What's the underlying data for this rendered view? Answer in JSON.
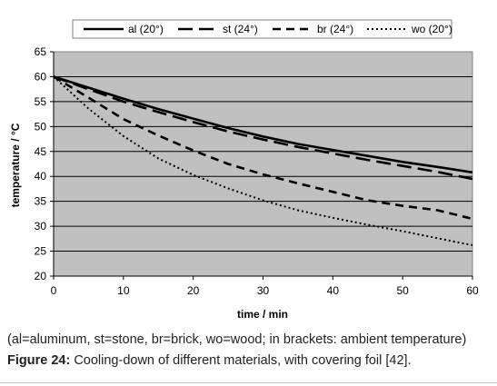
{
  "chart_data": {
    "type": "line",
    "xlabel": "time / min",
    "ylabel": "temperature / °C",
    "xlim": [
      0,
      60
    ],
    "ylim": [
      20,
      65
    ],
    "xticks": [
      0,
      10,
      20,
      30,
      40,
      50,
      60
    ],
    "yticks": [
      20,
      25,
      30,
      35,
      40,
      45,
      50,
      55,
      60,
      65
    ],
    "grid": "horizontal",
    "plot_background": "#c0c0c0",
    "legend_position": "top",
    "x": [
      0,
      5,
      10,
      15,
      20,
      25,
      30,
      35,
      40,
      45,
      50,
      55,
      60
    ],
    "series": [
      {
        "name": "al (20°)",
        "style": "solid",
        "values": [
          60,
          57.8,
          55.6,
          53.5,
          51.6,
          49.7,
          48,
          46.5,
          45.3,
          44.1,
          42.9,
          41.9,
          40.8
        ]
      },
      {
        "name": "st (24°)",
        "style": "dashed",
        "values": [
          60,
          57.5,
          55,
          52.9,
          50.9,
          49,
          47.4,
          45.9,
          44.6,
          43.3,
          42.1,
          40.9,
          39.5
        ]
      },
      {
        "name": "br (24°)",
        "style": "dashed-short",
        "values": [
          60,
          55.8,
          51.5,
          48.2,
          45.2,
          42.5,
          40.4,
          38.6,
          36.9,
          35.2,
          34.1,
          33.2,
          31.5
        ]
      },
      {
        "name": "wo (20°)",
        "style": "dotted",
        "values": [
          60,
          53.6,
          48.1,
          43.6,
          40.3,
          37.6,
          35.2,
          33.2,
          31.7,
          30.3,
          29,
          27.6,
          26.2
        ]
      }
    ],
    "colors": {
      "line": "#000000",
      "grid": "#000000",
      "plot_border": "#808080"
    }
  },
  "caption": {
    "line1": "(al=aluminum, st=stone, br=brick, wo=wood; in brackets: ambient temperature)",
    "figure_label": "Figure 24:",
    "figure_text": " Cooling-down of different materials, with covering foil [42]."
  }
}
